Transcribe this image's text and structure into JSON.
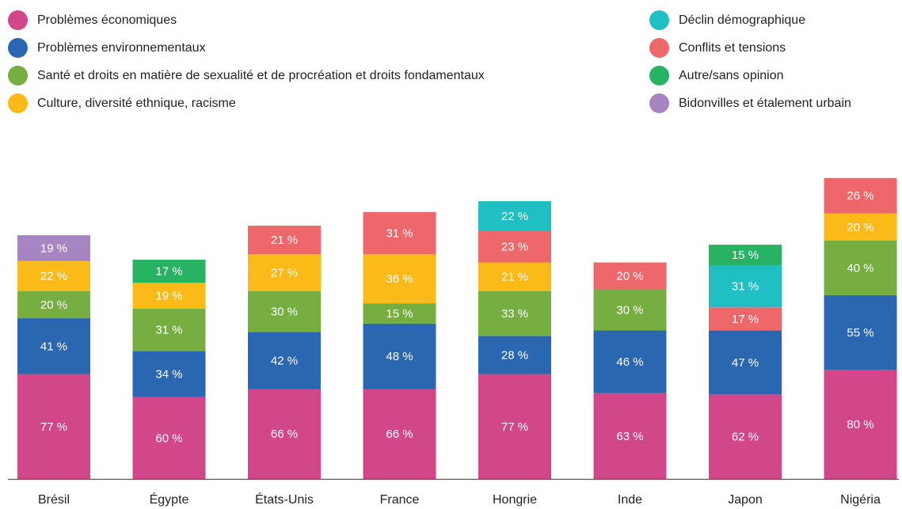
{
  "legend": {
    "items": [
      {
        "key": "eco",
        "label": "Problèmes économiques",
        "color": "#d2468a"
      },
      {
        "key": "env",
        "label": "Problèmes environnementaux",
        "color": "#2b67b1"
      },
      {
        "key": "sante",
        "label": "Santé et droits en matière de sexualité et de procréation et droits fondamentaux",
        "color": "#76ae42"
      },
      {
        "key": "culture",
        "label": "Culture, diversité ethnique, racisme",
        "color": "#fbba17"
      },
      {
        "key": "demo",
        "label": "Déclin démographique",
        "color": "#1fbfc3"
      },
      {
        "key": "conflits",
        "label": "Conflits et tensions",
        "color": "#ee686b"
      },
      {
        "key": "autre",
        "label": "Autre/sans opinion",
        "color": "#27b264"
      },
      {
        "key": "bidon",
        "label": "Bidonvilles et étalement urbain",
        "color": "#a685c2"
      }
    ]
  },
  "chart_data": {
    "type": "bar",
    "stacked": true,
    "value_suffix": " %",
    "categories": [
      "Brésil",
      "Égypte",
      "États-Unis",
      "France",
      "Hongrie",
      "Inde",
      "Japon",
      "Nigéria"
    ],
    "stacks": [
      [
        {
          "series": "eco",
          "value": 77
        },
        {
          "series": "env",
          "value": 41
        },
        {
          "series": "sante",
          "value": 20
        },
        {
          "series": "culture",
          "value": 22
        },
        {
          "series": "bidon",
          "value": 19
        }
      ],
      [
        {
          "series": "eco",
          "value": 60
        },
        {
          "series": "env",
          "value": 34
        },
        {
          "series": "sante",
          "value": 31
        },
        {
          "series": "culture",
          "value": 19
        },
        {
          "series": "autre",
          "value": 17
        }
      ],
      [
        {
          "series": "eco",
          "value": 66
        },
        {
          "series": "env",
          "value": 42
        },
        {
          "series": "sante",
          "value": 30
        },
        {
          "series": "culture",
          "value": 27
        },
        {
          "series": "conflits",
          "value": 21
        }
      ],
      [
        {
          "series": "eco",
          "value": 66
        },
        {
          "series": "env",
          "value": 48
        },
        {
          "series": "sante",
          "value": 15
        },
        {
          "series": "culture",
          "value": 36
        },
        {
          "series": "conflits",
          "value": 31
        }
      ],
      [
        {
          "series": "eco",
          "value": 77
        },
        {
          "series": "env",
          "value": 28
        },
        {
          "series": "sante",
          "value": 33
        },
        {
          "series": "culture",
          "value": 21
        },
        {
          "series": "conflits",
          "value": 23
        },
        {
          "series": "demo",
          "value": 22
        }
      ],
      [
        {
          "series": "eco",
          "value": 63
        },
        {
          "series": "env",
          "value": 46
        },
        {
          "series": "sante",
          "value": 30
        },
        {
          "series": "conflits",
          "value": 20
        }
      ],
      [
        {
          "series": "eco",
          "value": 62
        },
        {
          "series": "env",
          "value": 47
        },
        {
          "series": "conflits",
          "value": 17
        },
        {
          "series": "demo",
          "value": 31
        },
        {
          "series": "autre",
          "value": 15
        }
      ],
      [
        {
          "series": "eco",
          "value": 80
        },
        {
          "series": "env",
          "value": 55
        },
        {
          "series": "sante",
          "value": 40
        },
        {
          "series": "culture",
          "value": 20
        },
        {
          "series": "conflits",
          "value": 26
        }
      ]
    ],
    "title": "",
    "xlabel": "",
    "ylabel": "",
    "grid": false,
    "legend_position": "top"
  }
}
